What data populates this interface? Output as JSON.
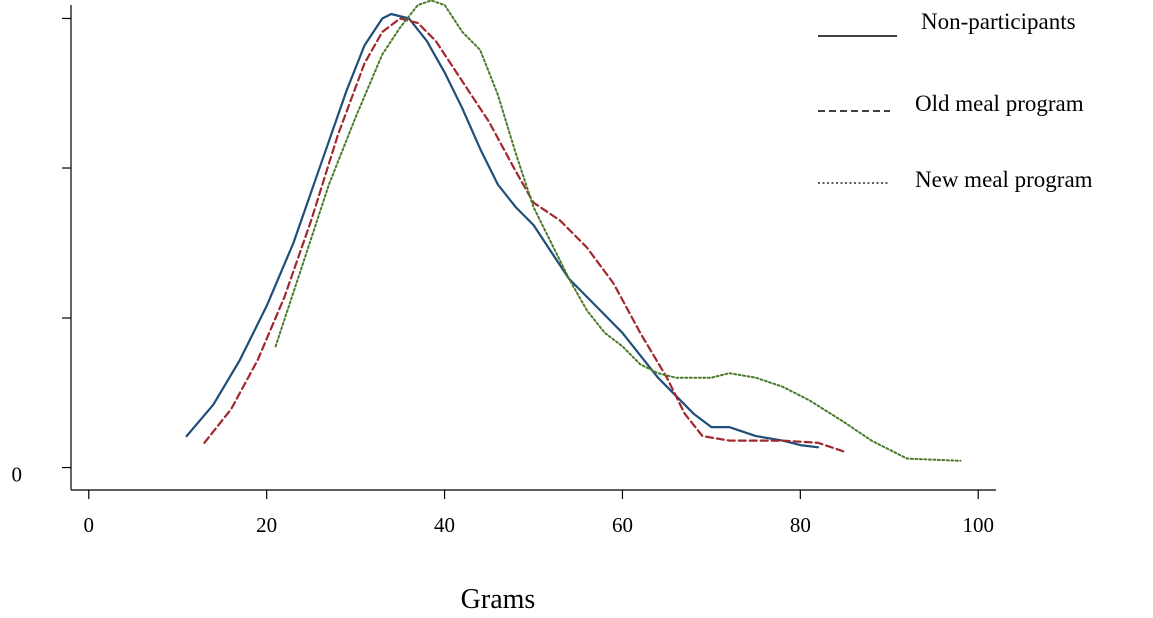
{
  "chart_data": {
    "type": "line",
    "xlabel": "Grams",
    "ylabel": "",
    "xlim": [
      -2,
      102
    ],
    "ylim": [
      -0.05,
      1.03
    ],
    "x_ticks": [
      0,
      20,
      40,
      60,
      80,
      100
    ],
    "y_ticks": [
      0,
      0.333,
      0.667,
      1.0
    ],
    "y_tick_labels": [
      "0",
      "",
      "",
      ""
    ],
    "grid": false,
    "legend_position": "top-right",
    "series": [
      {
        "name": "Non-participants",
        "color": "#1f4e79",
        "style": "solid",
        "x": [
          11,
          14,
          17,
          20,
          23,
          26,
          29,
          31,
          33,
          34,
          36,
          38,
          40,
          42,
          44,
          46,
          48,
          50,
          52,
          54,
          56,
          58,
          60,
          62,
          64,
          66,
          68,
          70,
          72,
          75,
          78,
          80,
          82
        ],
        "y": [
          0.07,
          0.14,
          0.24,
          0.36,
          0.5,
          0.67,
          0.84,
          0.94,
          1.0,
          1.01,
          1.0,
          0.95,
          0.88,
          0.8,
          0.71,
          0.63,
          0.58,
          0.54,
          0.48,
          0.42,
          0.38,
          0.34,
          0.3,
          0.25,
          0.2,
          0.16,
          0.12,
          0.09,
          0.09,
          0.07,
          0.06,
          0.05,
          0.045
        ]
      },
      {
        "name": "Old meal program",
        "color": "#a0282e",
        "style": "dashed",
        "x": [
          13,
          16,
          19,
          22,
          25,
          28,
          31,
          33,
          35,
          37,
          39,
          42,
          45,
          48,
          50,
          53,
          56,
          59,
          62,
          65,
          67,
          69,
          72,
          75,
          78,
          82,
          85
        ],
        "y": [
          0.055,
          0.13,
          0.24,
          0.38,
          0.55,
          0.74,
          0.9,
          0.97,
          1.0,
          0.99,
          0.95,
          0.86,
          0.77,
          0.66,
          0.59,
          0.55,
          0.49,
          0.41,
          0.3,
          0.2,
          0.12,
          0.07,
          0.06,
          0.06,
          0.06,
          0.055,
          0.035
        ]
      },
      {
        "name": "New meal program",
        "color": "#4a7a2a",
        "style": "dotted",
        "x": [
          21,
          24,
          27,
          30,
          33,
          35,
          37,
          38.5,
          40,
          42,
          44,
          46,
          48,
          50,
          52,
          54,
          56,
          58,
          60,
          62,
          64,
          66,
          68,
          70,
          72,
          75,
          78,
          81,
          85,
          88,
          92,
          98
        ],
        "y": [
          0.27,
          0.45,
          0.63,
          0.78,
          0.92,
          0.98,
          1.03,
          1.04,
          1.03,
          0.97,
          0.93,
          0.83,
          0.7,
          0.58,
          0.5,
          0.42,
          0.35,
          0.3,
          0.27,
          0.23,
          0.21,
          0.2,
          0.2,
          0.2,
          0.21,
          0.2,
          0.18,
          0.15,
          0.1,
          0.06,
          0.02,
          0.015
        ]
      }
    ]
  }
}
